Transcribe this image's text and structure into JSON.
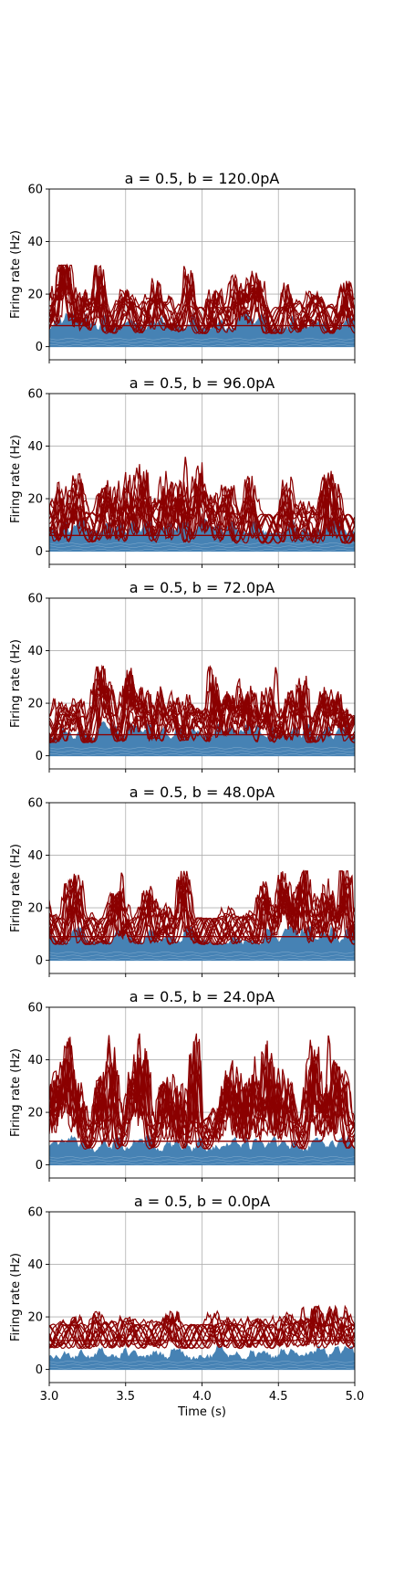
{
  "chart_data": [
    {
      "type": "line",
      "title": "a = 0.5, b = 120.0pA",
      "ylabel": "Firing rate (Hz)",
      "xlabel": "",
      "xlim": [
        3.0,
        5.0
      ],
      "ylim": [
        -5,
        60
      ],
      "yticks": [
        "0",
        "20",
        "40",
        "60"
      ],
      "grid": true,
      "show_xticklabels": false,
      "series": [
        {
          "group": "upper",
          "color": "#8b0000",
          "band_low": 5,
          "band_high": 15,
          "max_peak": 31
        },
        {
          "group": "lower",
          "color": "#4682b4",
          "band_low": 0,
          "band_high": 12
        }
      ]
    },
    {
      "type": "line",
      "title": "a = 0.5, b = 96.0pA",
      "ylabel": "Firing rate (Hz)",
      "xlabel": "",
      "xlim": [
        3.0,
        5.0
      ],
      "ylim": [
        -5,
        60
      ],
      "yticks": [
        "0",
        "20",
        "40",
        "60"
      ],
      "grid": true,
      "show_xticklabels": false,
      "series": [
        {
          "group": "upper",
          "color": "#8b0000",
          "band_low": 3,
          "band_high": 14,
          "max_peak": 36
        },
        {
          "group": "lower",
          "color": "#4682b4",
          "band_low": 0,
          "band_high": 12
        }
      ]
    },
    {
      "type": "line",
      "title": "a = 0.5, b = 72.0pA",
      "ylabel": "Firing rate (Hz)",
      "xlabel": "",
      "xlim": [
        3.0,
        5.0
      ],
      "ylim": [
        -5,
        60
      ],
      "yticks": [
        "0",
        "20",
        "40",
        "60"
      ],
      "grid": true,
      "show_xticklabels": false,
      "series": [
        {
          "group": "upper",
          "color": "#8b0000",
          "band_low": 5,
          "band_high": 15,
          "max_peak": 34
        },
        {
          "group": "lower",
          "color": "#4682b4",
          "band_low": 0,
          "band_high": 12
        }
      ]
    },
    {
      "type": "line",
      "title": "a = 0.5, b = 48.0pA",
      "ylabel": "Firing rate (Hz)",
      "xlabel": "",
      "xlim": [
        3.0,
        5.0
      ],
      "ylim": [
        -5,
        60
      ],
      "yticks": [
        "0",
        "20",
        "40",
        "60"
      ],
      "grid": true,
      "show_xticklabels": false,
      "series": [
        {
          "group": "upper",
          "color": "#8b0000",
          "band_low": 6,
          "band_high": 16,
          "max_peak": 34
        },
        {
          "group": "lower",
          "color": "#4682b4",
          "band_low": 0,
          "band_high": 12
        }
      ]
    },
    {
      "type": "line",
      "title": "a = 0.5, b = 24.0pA",
      "ylabel": "Firing rate (Hz)",
      "xlabel": "",
      "xlim": [
        3.0,
        5.0
      ],
      "ylim": [
        -5,
        60
      ],
      "yticks": [
        "0",
        "20",
        "40",
        "60"
      ],
      "grid": true,
      "show_xticklabels": false,
      "series": [
        {
          "group": "upper",
          "color": "#8b0000",
          "band_low": 6,
          "band_high": 16,
          "max_peak": 50
        },
        {
          "group": "lower",
          "color": "#4682b4",
          "band_low": 0,
          "band_high": 10
        }
      ]
    },
    {
      "type": "line",
      "title": "a = 0.5, b = 0.0pA",
      "ylabel": "Firing rate (Hz)",
      "xlabel": "Time (s)",
      "xlim": [
        3.0,
        5.0
      ],
      "ylim": [
        -5,
        60
      ],
      "yticks": [
        "0",
        "20",
        "40",
        "60"
      ],
      "xticks": [
        "3.0",
        "3.5",
        "4.0",
        "4.5",
        "5.0"
      ],
      "grid": true,
      "show_xticklabels": true,
      "series": [
        {
          "group": "upper",
          "color": "#8b0000",
          "band_low": 8,
          "band_high": 17,
          "max_peak": 24
        },
        {
          "group": "lower",
          "color": "#4682b4",
          "band_low": 0,
          "band_high": 8
        }
      ]
    }
  ]
}
